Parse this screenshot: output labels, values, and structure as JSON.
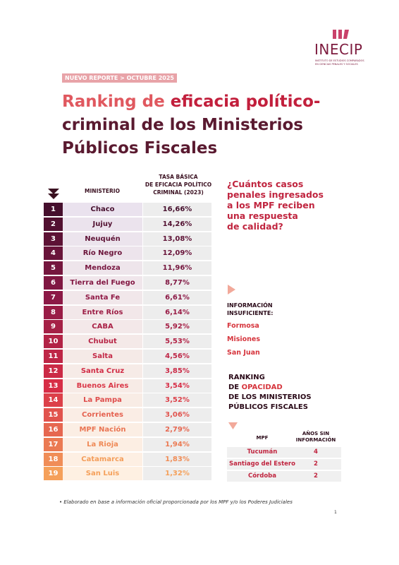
{
  "header": {
    "logo": "INECIP",
    "logo_subtitle": [
      "INSTITUTO DE ESTUDIOS COMPARADOS",
      "EN CIENCIAS PENALES Y SOCIALES"
    ],
    "tag": "NUEVO REPORTE > OCTUBRE 2025"
  },
  "title": [
    "Ranking de",
    "eficacia político-",
    "criminal de los Ministerios",
    "Públicos Fiscales"
  ],
  "table": {
    "headers": [
      "MINISTERIO",
      [
        "TASA BÁSICA",
        "DE EFICACIA POLÍTICO",
        "CRIMINAL (2023)"
      ]
    ],
    "rows": [
      [
        1,
        "Chaco",
        "16,66%"
      ],
      [
        2,
        "Jujuy",
        "14,26%"
      ],
      [
        3,
        "Neuquén",
        "13,08%"
      ],
      [
        4,
        "Río Negro",
        "12,09%"
      ],
      [
        5,
        "Mendoza",
        "11,96%"
      ],
      [
        6,
        "Tierra del Fuego",
        "8,77%"
      ],
      [
        7,
        "Santa Fe",
        "6,61%"
      ],
      [
        8,
        "Entre Ríos",
        "6,14%"
      ],
      [
        9,
        "CABA",
        "5,92%"
      ],
      [
        10,
        "Chubut",
        "5,53%"
      ],
      [
        11,
        "Salta",
        "4,56%"
      ],
      [
        12,
        "Santa Cruz",
        "3,85%"
      ],
      [
        13,
        "Buenos Aires",
        "3,54%"
      ],
      [
        14,
        "La Pampa",
        "3,52%"
      ],
      [
        15,
        "Corrientes",
        "3,06%"
      ],
      [
        16,
        "MPF Nación",
        "2,79%"
      ],
      [
        17,
        "La Rioja",
        "1,94%"
      ],
      [
        18,
        "Catamarca",
        "1,83%"
      ],
      [
        19,
        "San Luis",
        "1,32%"
      ]
    ]
  },
  "question": [
    "¿Cuántos casos",
    "penales ingresados",
    "a los MPF reciben",
    "una respuesta",
    "de calidad?"
  ],
  "insufficient": {
    "title": [
      "INFORMACIÓN",
      "INSUFICIENTE:"
    ],
    "items": [
      "Formosa",
      "Misiones",
      "San Juan"
    ]
  },
  "opacity": {
    "title": [
      "RANKING",
      "DE",
      "OPACIDAD",
      "DE LOS MINISTERIOS",
      "PÚBLICOS FISCALES"
    ],
    "headers": [
      "MPF",
      [
        "AÑOS SIN",
        "INFORMACIÓN"
      ]
    ],
    "rows": [
      [
        "Tucumán",
        4
      ],
      [
        "Santiago del Estero",
        2
      ],
      [
        "Córdoba",
        2
      ]
    ]
  },
  "footnote": "Elaborado en base a información oficial proporcionada por los MPF y/o los Poderes Judiciales",
  "page_number": 1
}
